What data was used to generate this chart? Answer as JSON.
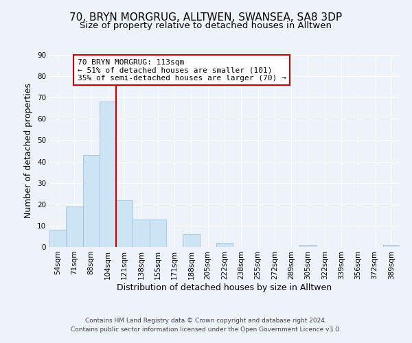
{
  "title": "70, BRYN MORGRUG, ALLTWEN, SWANSEA, SA8 3DP",
  "subtitle": "Size of property relative to detached houses in Alltwen",
  "xlabel": "Distribution of detached houses by size in Alltwen",
  "ylabel": "Number of detached properties",
  "bin_labels": [
    "54sqm",
    "71sqm",
    "88sqm",
    "104sqm",
    "121sqm",
    "138sqm",
    "155sqm",
    "171sqm",
    "188sqm",
    "205sqm",
    "222sqm",
    "238sqm",
    "255sqm",
    "272sqm",
    "289sqm",
    "305sqm",
    "322sqm",
    "339sqm",
    "356sqm",
    "372sqm",
    "389sqm"
  ],
  "bar_values": [
    8,
    19,
    43,
    68,
    22,
    13,
    13,
    0,
    6,
    0,
    2,
    0,
    0,
    0,
    0,
    1,
    0,
    0,
    0,
    0,
    1
  ],
  "bar_color": "#cde4f5",
  "bar_edge_color": "#a0c0e0",
  "highlight_line_color": "#cc0000",
  "annotation_line1": "70 BRYN MORGRUG: 113sqm",
  "annotation_line2": "← 51% of detached houses are smaller (101)",
  "annotation_line3": "35% of semi-detached houses are larger (70) →",
  "ylim": [
    0,
    90
  ],
  "yticks": [
    0,
    10,
    20,
    30,
    40,
    50,
    60,
    70,
    80,
    90
  ],
  "background_color": "#eef2f9",
  "plot_bg_color": "#eef2f9",
  "footer_line1": "Contains HM Land Registry data © Crown copyright and database right 2024.",
  "footer_line2": "Contains public sector information licensed under the Open Government Licence v3.0.",
  "title_fontsize": 11,
  "subtitle_fontsize": 9.5,
  "axis_label_fontsize": 9,
  "tick_fontsize": 7.5,
  "annotation_fontsize": 8,
  "footer_fontsize": 6.5
}
